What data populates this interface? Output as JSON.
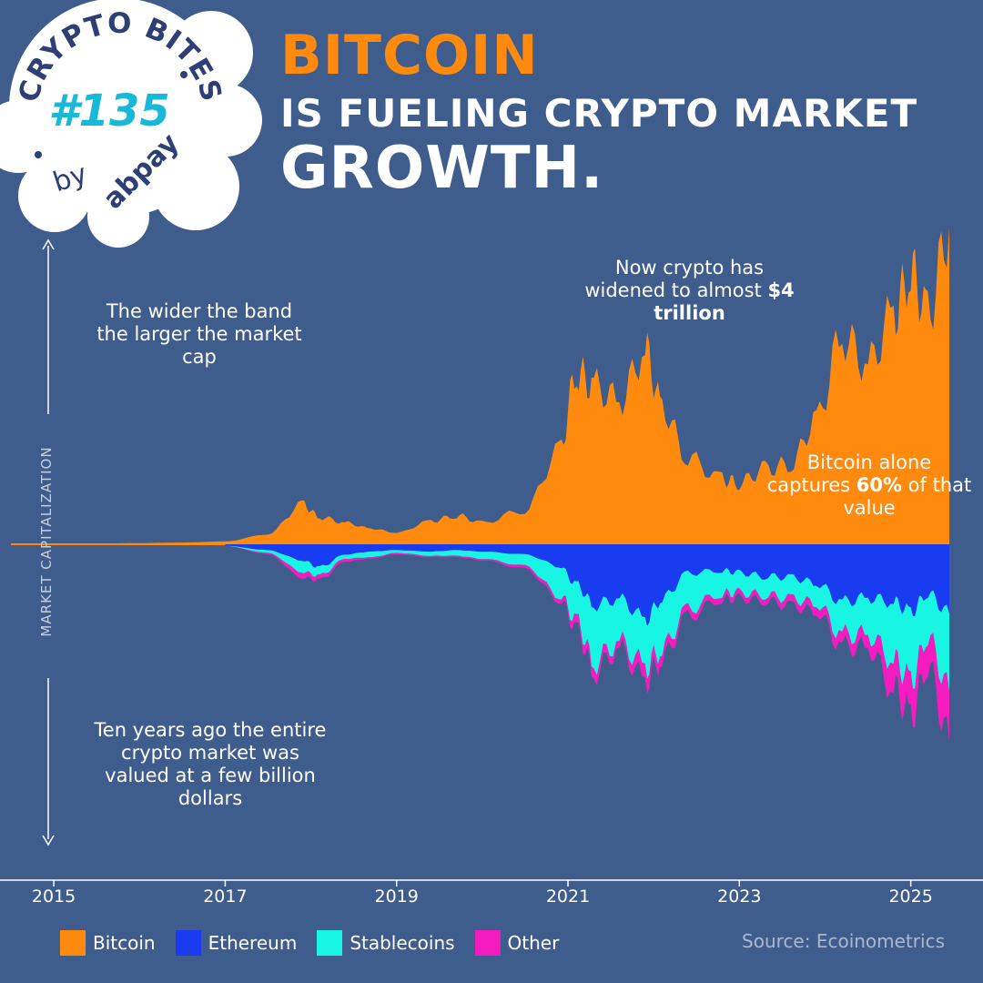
{
  "badge": {
    "top_text": "CRYPTO BITES",
    "number": "#135",
    "by": "by",
    "brand": "abpay"
  },
  "headline": {
    "line1": "BITCOIN",
    "line2": "IS FUELING CRYPTO MARKET",
    "line3": "GROWTH."
  },
  "annotations": {
    "band": "The wider the band the larger the market cap",
    "now_pre": "Now crypto has widened to almost ",
    "now_bold": "$4 trillion",
    "btc_pre": "Bitcoin alone captures ",
    "btc_bold": "60%",
    "btc_post": " of that value",
    "ten_years": "Ten years ago the entire crypto market was valued at a few billion dollars"
  },
  "source": "Source: Ecoinometrics",
  "colors": {
    "background": "#3f5d8c",
    "Bitcoin": "#ff8a0d",
    "Ethereum": "#1a3cf0",
    "Stablecoins": "#19f5e3",
    "Other": "#f41bbf"
  },
  "chart_data": {
    "type": "area",
    "stacking": "streamgraph",
    "ylabel": "MARKET CAPITALIZATION",
    "xlabel": "",
    "x_ticks": [
      "2015",
      "2017",
      "2019",
      "2021",
      "2023",
      "2025"
    ],
    "x": [
      2014.5,
      2015.0,
      2015.5,
      2016.0,
      2016.5,
      2017.0,
      2017.5,
      2017.9,
      2018.1,
      2018.4,
      2018.7,
      2019.0,
      2019.4,
      2019.7,
      2020.0,
      2020.5,
      2020.9,
      2021.1,
      2021.3,
      2021.6,
      2021.9,
      2022.1,
      2022.4,
      2022.8,
      2023.0,
      2023.3,
      2023.6,
      2023.9,
      2024.2,
      2024.5,
      2024.8,
      2025.0,
      2025.2,
      2025.45
    ],
    "series": [
      {
        "name": "Bitcoin",
        "values": [
          5,
          5,
          5,
          8,
          12,
          20,
          70,
          280,
          190,
          150,
          110,
          80,
          160,
          200,
          150,
          240,
          650,
          1200,
          1100,
          1000,
          1350,
          950,
          600,
          450,
          430,
          520,
          560,
          870,
          1450,
          1250,
          1600,
          1900,
          1600,
          2200
        ]
      },
      {
        "name": "Ethereum",
        "values": [
          0,
          0,
          1,
          1,
          2,
          10,
          40,
          110,
          160,
          70,
          50,
          40,
          50,
          40,
          50,
          70,
          150,
          280,
          420,
          380,
          520,
          380,
          200,
          180,
          200,
          220,
          230,
          270,
          400,
          370,
          400,
          470,
          340,
          480
        ]
      },
      {
        "name": "Stablecoins",
        "values": [
          0,
          0,
          0,
          0,
          0,
          1,
          20,
          80,
          60,
          30,
          40,
          20,
          30,
          40,
          50,
          80,
          200,
          250,
          400,
          300,
          330,
          350,
          250,
          160,
          140,
          130,
          150,
          140,
          230,
          260,
          400,
          480,
          300,
          540
        ]
      },
      {
        "name": "Other",
        "values": [
          0,
          0,
          0,
          0,
          0,
          1,
          10,
          40,
          30,
          20,
          10,
          10,
          10,
          10,
          10,
          20,
          30,
          60,
          70,
          50,
          100,
          70,
          50,
          40,
          40,
          40,
          50,
          60,
          80,
          90,
          200,
          250,
          200,
          350
        ]
      }
    ],
    "legend": [
      "Bitcoin",
      "Ethereum",
      "Stablecoins",
      "Other"
    ],
    "legend_position": "bottom-left",
    "grid": false
  }
}
